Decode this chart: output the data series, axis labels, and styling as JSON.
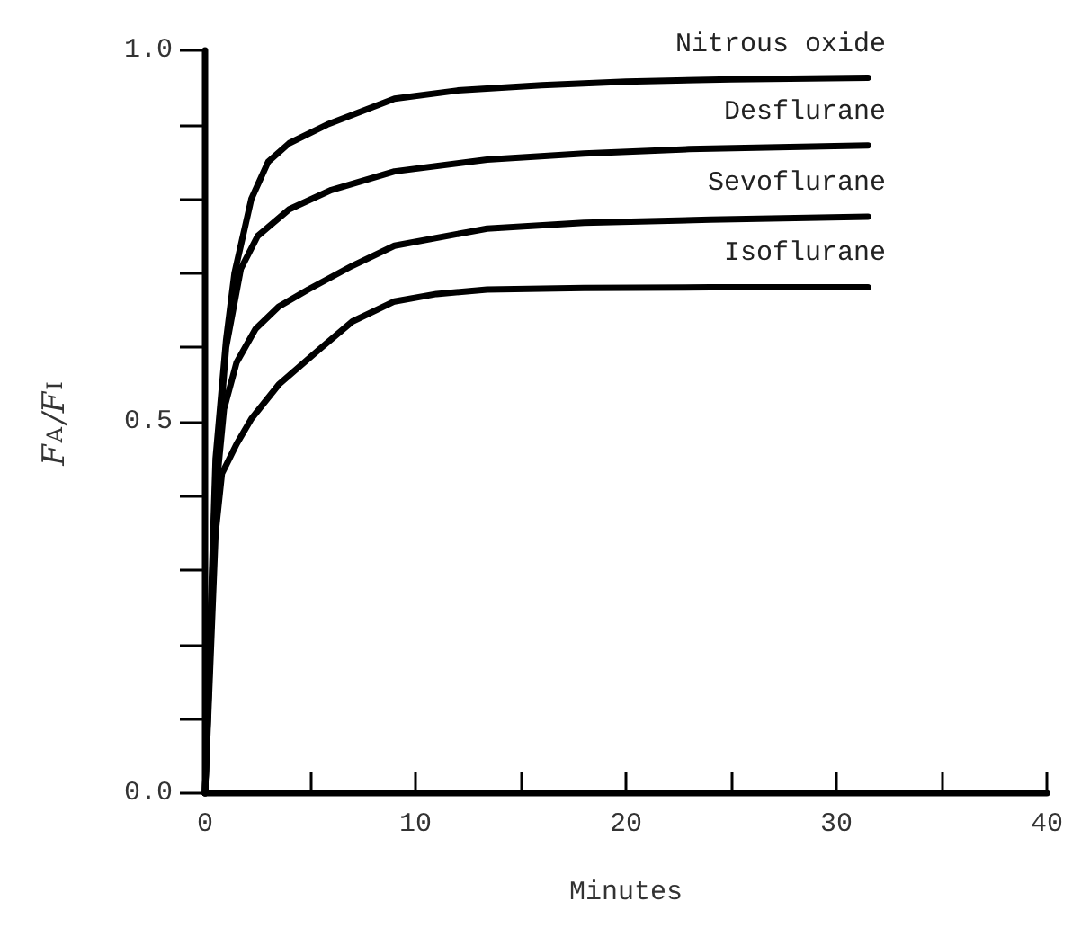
{
  "chart_data": {
    "type": "line",
    "xlabel": "Minutes",
    "ylabel": "F$_{A}$/F$_{I}$",
    "xlim": [
      0,
      40
    ],
    "xticks": [
      0,
      {
        "value": 5,
        "label": null
      },
      10,
      {
        "value": 15,
        "label": null
      },
      20,
      {
        "value": 25,
        "label": null
      },
      30,
      {
        "value": 35,
        "label": null
      },
      40
    ],
    "ylim": [
      0,
      1
    ],
    "yticks": [
      {
        "value": 0,
        "label": "0.0"
      },
      {
        "value": 0.1,
        "label": null
      },
      {
        "value": 0.2,
        "label": null
      },
      {
        "value": 0.3,
        "label": null
      },
      {
        "value": 0.4,
        "label": null
      },
      {
        "value": 0.5,
        "label": "0.5"
      },
      {
        "value": 0.6,
        "label": null
      },
      {
        "value": 0.7,
        "label": null
      },
      {
        "value": 0.8,
        "label": null
      },
      {
        "value": 0.9,
        "label": null
      },
      {
        "value": 1,
        "label": "1.0"
      }
    ],
    "grid": false,
    "legend": false,
    "marker": "none",
    "line_style": "solid",
    "series": [
      {
        "name": "Nitrous oxide",
        "color": "#000000",
        "x": [
          0,
          0.5,
          1,
          1.4,
          2.2,
          3,
          4,
          5.8,
          9,
          12,
          16,
          20,
          25,
          31.5
        ],
        "values": [
          0,
          0.45,
          0.61,
          0.7,
          0.8,
          0.85,
          0.875,
          0.9,
          0.935,
          0.946,
          0.953,
          0.958,
          0.961,
          0.963
        ]
      },
      {
        "name": "Desflurane",
        "color": "#000000",
        "x": [
          0,
          0.5,
          1,
          1.7,
          2.5,
          4,
          6,
          9,
          13.4,
          18,
          23,
          31.5
        ],
        "values": [
          0,
          0.42,
          0.6,
          0.706,
          0.75,
          0.786,
          0.812,
          0.837,
          0.853,
          0.861,
          0.867,
          0.872
        ]
      },
      {
        "name": "Sevoflurane",
        "color": "#000000",
        "x": [
          0,
          0.5,
          0.9,
          1.5,
          2.4,
          3.5,
          4.9,
          7,
          9,
          13.4,
          18,
          24,
          31.5
        ],
        "values": [
          0,
          0.4,
          0.517,
          0.58,
          0.625,
          0.655,
          0.678,
          0.71,
          0.737,
          0.76,
          0.768,
          0.772,
          0.776
        ]
      },
      {
        "name": "Isoflurane",
        "color": "#000000",
        "x": [
          0,
          0.5,
          0.8,
          1.5,
          2.2,
          3.5,
          5.5,
          7,
          9,
          11,
          13.4,
          18,
          24,
          31.5
        ],
        "values": [
          0,
          0.35,
          0.43,
          0.47,
          0.504,
          0.55,
          0.599,
          0.635,
          0.662,
          0.672,
          0.678,
          0.68,
          0.681,
          0.681
        ]
      }
    ]
  }
}
